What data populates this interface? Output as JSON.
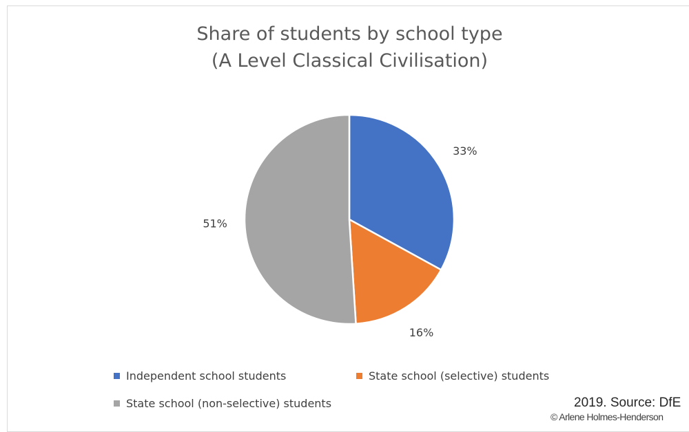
{
  "chart_data": {
    "type": "pie",
    "title_lines": [
      "Share of students by school type",
      "(A Level Classical Civilisation)"
    ],
    "slices": [
      {
        "label": "Independent school students",
        "value": 33,
        "value_label": "33%",
        "color": "#4472C4"
      },
      {
        "label": "State school (selective) students",
        "value": 16,
        "value_label": "16%",
        "color": "#ED7D31"
      },
      {
        "label": "State school (non-selective) students",
        "value": 51,
        "value_label": "51%",
        "color": "#A5A5A5"
      }
    ],
    "legend_position": "bottom"
  },
  "annotations": {
    "source": "2019. Source: DfE",
    "copyright": "© Arlene Holmes-Henderson"
  }
}
